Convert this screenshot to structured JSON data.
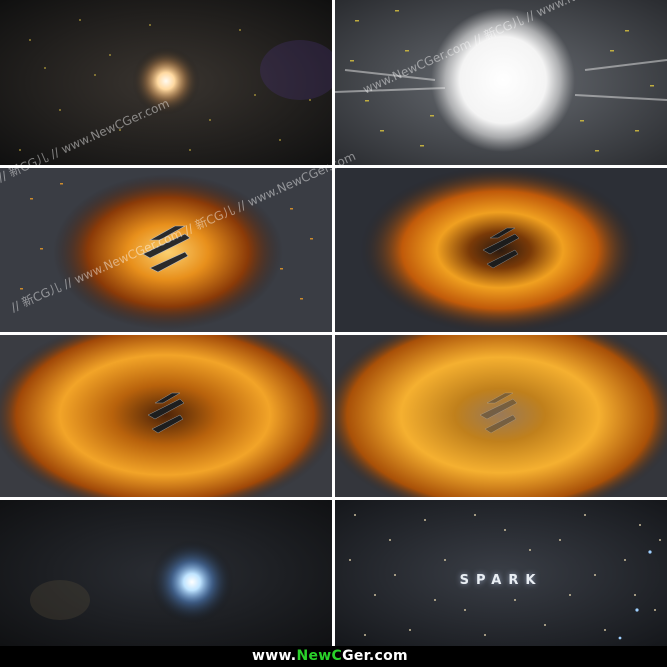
{
  "frames": [
    {
      "id": 1,
      "subject": "small-glowing-orb"
    },
    {
      "id": 2,
      "subject": "bright-white-explosion"
    },
    {
      "id": 3,
      "subject": "fire-burst-with-logo"
    },
    {
      "id": 4,
      "subject": "fire-ring-with-logo"
    },
    {
      "id": 5,
      "subject": "fire-swirl-with-logo"
    },
    {
      "id": 6,
      "subject": "fire-swirl-faded-logo"
    },
    {
      "id": 7,
      "subject": "blue-glowing-orb"
    },
    {
      "id": 8,
      "subject": "starfield-title"
    }
  ],
  "title_text": "SPARK",
  "watermark": {
    "line_a": "www.NewCGer.com // 新CG儿 // www.NewCGer.com",
    "line_b": "// 新CG儿 // www.NewCGer.com // 新CG儿 // www.NewCGer.com",
    "line_c": "// 新CG儿 // www.NewCGer.com"
  },
  "footer": {
    "prefix": "www.",
    "new": "New",
    "c": "C",
    "rest": "Ger.com"
  },
  "colors": {
    "fire": "#f0a020",
    "fire_dark": "#7a2a05",
    "space": "#1a1d22",
    "orb_blue": "#8fd0ff",
    "orb_warm": "#ffd9a0"
  }
}
